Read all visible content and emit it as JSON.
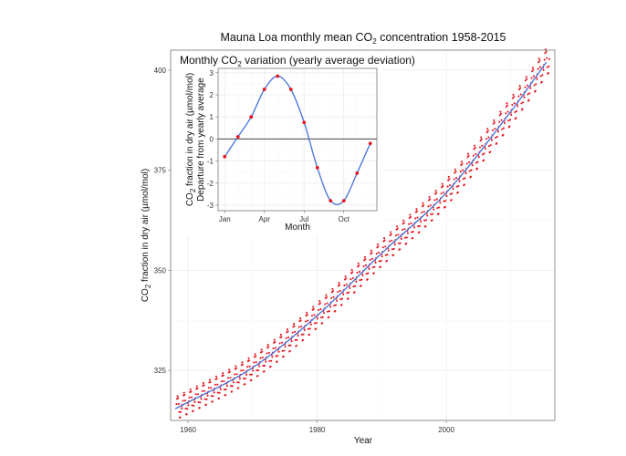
{
  "chart_data": [
    {
      "type": "scatter",
      "title": {
        "pre": "Mauna Loa monthly mean CO",
        "sub": "2",
        "post": " concentration 1958-2015"
      },
      "xlabel": "Year",
      "ylabel": {
        "pre": "CO",
        "sub": "2",
        "post": " fraction in dry air (µmol/mol)"
      },
      "xlim": [
        1957.3,
        2016.8
      ],
      "ylim": [
        312.5,
        405
      ],
      "xticks": [
        1960,
        1980,
        2000
      ],
      "yticks": [
        325,
        350,
        375,
        400
      ],
      "grid": true,
      "point_color": "#e8151f",
      "fit_color": "#4f78d8",
      "trend_fit": {
        "description": "smooth blue trend line through the monthly points",
        "anchor_years": [
          1958,
          1970,
          1980,
          1990,
          2000,
          2010,
          2015
        ],
        "anchor_values": [
          315.4,
          325.7,
          338.7,
          354.3,
          369.4,
          389.7,
          400.9
        ]
      },
      "series": [
        {
          "values_description": "monthly mean CO2 concentration, 1958-2015, 12 points per year (trend + seasonal variation)",
          "monthly_seasonal_offset": [
            -0.8,
            0.1,
            1.0,
            2.25,
            2.85,
            2.25,
            0.75,
            -1.3,
            -2.8,
            -2.8,
            -1.55,
            -0.2
          ]
        }
      ]
    },
    {
      "type": "line",
      "title": {
        "pre": "Monthly CO",
        "sub": "2",
        "post": " variation (yearly average deviation)"
      },
      "xlabel": "Month",
      "ylabel_line1": {
        "pre": "CO",
        "sub": "2",
        "post": " fraction in dry air (µmol/mol)"
      },
      "ylabel_line2": "Departure from yearly average",
      "months": [
        "Jan",
        "Feb",
        "Mar",
        "Apr",
        "May",
        "Jun",
        "Jul",
        "Aug",
        "Sep",
        "Oct",
        "Nov",
        "Dec"
      ],
      "values": [
        -0.8,
        0.1,
        1.0,
        2.25,
        2.85,
        2.25,
        0.75,
        -1.3,
        -2.8,
        -2.8,
        -1.55,
        -0.2
      ],
      "xtick_labels": [
        "Jan",
        "Apr",
        "Jul",
        "Oct"
      ],
      "xtick_months": [
        1,
        4,
        7,
        10
      ],
      "xlim": [
        0.5,
        12.5
      ],
      "ylim": [
        -3.25,
        3.2
      ],
      "yticks": [
        -3,
        -2,
        -1,
        0,
        1,
        2,
        3
      ],
      "zero_line": true,
      "grid": true,
      "point_color": "#e8151f",
      "curve_color": "#4f78d8"
    }
  ]
}
